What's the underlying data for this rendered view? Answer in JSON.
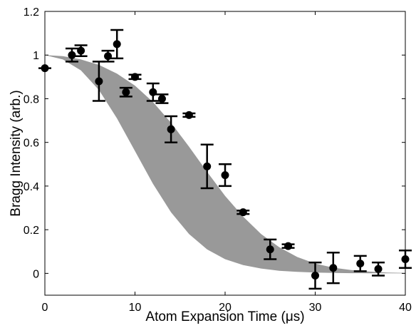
{
  "chart_data": {
    "type": "scatter",
    "xlabel_main": "Atom Expansion Time (",
    "xlabel_unit": "μs",
    "xlabel_close": ")",
    "ylabel": "Bragg Intensity (arb.)",
    "xlim": [
      0,
      40
    ],
    "ylim": [
      -0.1,
      1.2
    ],
    "xticks": [
      0,
      10,
      20,
      30,
      40
    ],
    "yticks": [
      0,
      0.2,
      0.4,
      0.6,
      0.8,
      1,
      1.2
    ],
    "xtick_labels": [
      "0",
      "10",
      "20",
      "30",
      "40"
    ],
    "ytick_labels": [
      "0",
      "0.2",
      "0.4",
      "0.6",
      "0.8",
      "1",
      "1.2"
    ],
    "grid": false,
    "colors": {
      "points": "#000000",
      "band": "#999999",
      "axes": "#000000"
    },
    "band": {
      "x": [
        0,
        2,
        4,
        6,
        8,
        10,
        12,
        14,
        16,
        18,
        20,
        22,
        24,
        26,
        28,
        30,
        32,
        34,
        36,
        38,
        40
      ],
      "upper": [
        1.0,
        0.995,
        0.98,
        0.955,
        0.915,
        0.86,
        0.785,
        0.69,
        0.58,
        0.465,
        0.355,
        0.26,
        0.18,
        0.12,
        0.075,
        0.045,
        0.026,
        0.015,
        0.008,
        0.004,
        0.002
      ],
      "lower": [
        1.0,
        0.98,
        0.93,
        0.84,
        0.71,
        0.56,
        0.41,
        0.28,
        0.18,
        0.11,
        0.065,
        0.038,
        0.022,
        0.012,
        0.007,
        0.004,
        0.002,
        0.001,
        0.0005,
        0.0002,
        0.0001
      ]
    },
    "points": [
      {
        "x": 0,
        "y": 0.94,
        "err": 0.0
      },
      {
        "x": 3,
        "y": 1.0,
        "err": 0.03
      },
      {
        "x": 4,
        "y": 1.02,
        "err": 0.025
      },
      {
        "x": 6,
        "y": 0.88,
        "err": 0.09
      },
      {
        "x": 7,
        "y": 0.995,
        "err": 0.025
      },
      {
        "x": 8,
        "y": 1.05,
        "err": 0.065
      },
      {
        "x": 9,
        "y": 0.83,
        "err": 0.02
      },
      {
        "x": 10,
        "y": 0.9,
        "err": 0.01
      },
      {
        "x": 12,
        "y": 0.83,
        "err": 0.04
      },
      {
        "x": 13,
        "y": 0.8,
        "err": 0.02
      },
      {
        "x": 14,
        "y": 0.66,
        "err": 0.06
      },
      {
        "x": 16,
        "y": 0.725,
        "err": 0.008
      },
      {
        "x": 18,
        "y": 0.49,
        "err": 0.1
      },
      {
        "x": 20,
        "y": 0.45,
        "err": 0.05
      },
      {
        "x": 22,
        "y": 0.28,
        "err": 0.008
      },
      {
        "x": 25,
        "y": 0.11,
        "err": 0.045
      },
      {
        "x": 27,
        "y": 0.125,
        "err": 0.008
      },
      {
        "x": 30,
        "y": -0.01,
        "err": 0.06
      },
      {
        "x": 32,
        "y": 0.025,
        "err": 0.07
      },
      {
        "x": 35,
        "y": 0.045,
        "err": 0.035
      },
      {
        "x": 37,
        "y": 0.02,
        "err": 0.03
      },
      {
        "x": 40,
        "y": 0.065,
        "err": 0.04
      }
    ]
  }
}
